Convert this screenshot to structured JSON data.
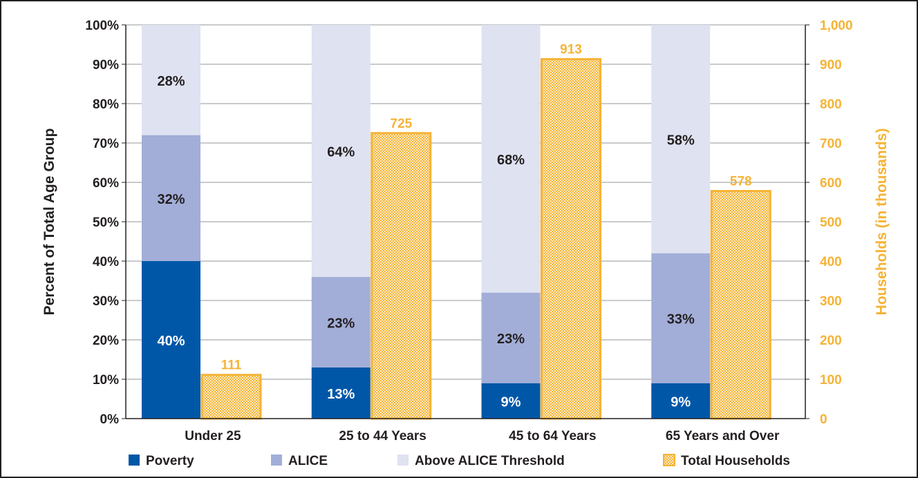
{
  "chart_data": {
    "type": "bar",
    "categories": [
      "Under 25",
      "25 to 44 Years",
      "45 to 64 Years",
      "65 Years and Over"
    ],
    "series": [
      {
        "name": "Poverty",
        "values": [
          40,
          13,
          9,
          9
        ],
        "labels": [
          "40%",
          "13%",
          "9%",
          "9%"
        ],
        "color": "#0057a8",
        "axis": "left",
        "stack": "percent"
      },
      {
        "name": "ALICE",
        "values": [
          32,
          23,
          23,
          33
        ],
        "labels": [
          "32%",
          "23%",
          "23%",
          "33%"
        ],
        "color": "#a2aed8",
        "axis": "left",
        "stack": "percent"
      },
      {
        "name": "Above ALICE Threshold",
        "values": [
          28,
          64,
          68,
          58
        ],
        "labels": [
          "28%",
          "64%",
          "68%",
          "58%"
        ],
        "color": "#dfe2f1",
        "axis": "left",
        "stack": "percent"
      },
      {
        "name": "Total Households",
        "values": [
          111,
          725,
          913,
          578
        ],
        "labels": [
          "111",
          "725",
          "913",
          "578"
        ],
        "color": "#f5b335",
        "axis": "right",
        "pattern": "dotted"
      }
    ],
    "ylabel": "Percent of Total Age Group",
    "y2label": "Households (in thousands)",
    "ylim": [
      0,
      100
    ],
    "y2lim": [
      0,
      1000
    ],
    "yticks": [
      "0%",
      "10%",
      "20%",
      "30%",
      "40%",
      "50%",
      "60%",
      "70%",
      "80%",
      "90%",
      "100%"
    ],
    "y2ticks": [
      "0",
      "100",
      "200",
      "300",
      "400",
      "500",
      "600",
      "700",
      "800",
      "900",
      "1,000"
    ],
    "grid": true,
    "legend_position": "bottom"
  }
}
